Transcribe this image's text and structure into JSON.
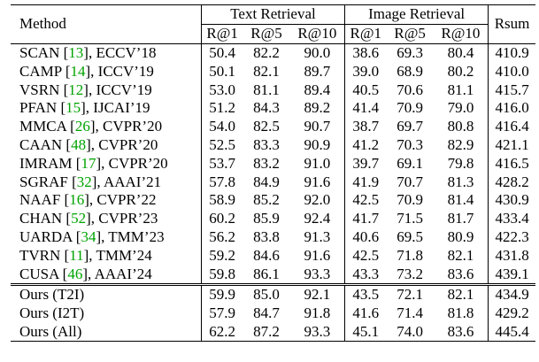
{
  "table": {
    "header": {
      "method": "Method",
      "text_retrieval": "Text Retrieval",
      "image_retrieval": "Image Retrieval",
      "rsum": "Rsum",
      "metrics": [
        "R@1",
        "R@5",
        "R@10",
        "R@1",
        "R@5",
        "R@10"
      ]
    },
    "rows": [
      {
        "name": "SCAN",
        "ref": "13",
        "venue": "ECCV’18",
        "t1": "50.4",
        "t5": "82.2",
        "t10": "90.0",
        "i1": "38.6",
        "i5": "69.3",
        "i10": "80.4",
        "rsum": "410.9"
      },
      {
        "name": "CAMP",
        "ref": "14",
        "venue": "ICCV’19",
        "t1": "50.1",
        "t5": "82.1",
        "t10": "89.7",
        "i1": "39.0",
        "i5": "68.9",
        "i10": "80.2",
        "rsum": "410.0"
      },
      {
        "name": "VSRN",
        "ref": "12",
        "venue": "ICCV’19",
        "t1": "53.0",
        "t5": "81.1",
        "t10": "89.4",
        "i1": "40.5",
        "i5": "70.6",
        "i10": "81.1",
        "rsum": "415.7"
      },
      {
        "name": "PFAN",
        "ref": "15",
        "venue": "IJCAI’19",
        "t1": "51.2",
        "t5": "84.3",
        "t10": "89.2",
        "i1": "41.4",
        "i5": "70.9",
        "i10": "79.0",
        "rsum": "416.0"
      },
      {
        "name": "MMCA",
        "ref": "26",
        "venue": "CVPR’20",
        "t1": "54.0",
        "t5": "82.5",
        "t10": "90.7",
        "i1": "38.7",
        "i5": "69.7",
        "i10": "80.8",
        "rsum": "416.4"
      },
      {
        "name": "CAAN",
        "ref": "48",
        "venue": "CVPR’20",
        "t1": "52.5",
        "t5": "83.3",
        "t10": "90.9",
        "i1": "41.2",
        "i5": "70.3",
        "i10": "82.9",
        "rsum": "421.1"
      },
      {
        "name": "IMRAM",
        "ref": "17",
        "venue": "CVPR’20",
        "t1": "53.7",
        "t5": "83.2",
        "t10": "91.0",
        "i1": "39.7",
        "i5": "69.1",
        "i10": "79.8",
        "rsum": "416.5"
      },
      {
        "name": "SGRAF",
        "ref": "32",
        "venue": "AAAI’21",
        "t1": "57.8",
        "t5": "84.9",
        "t10": "91.6",
        "i1": "41.9",
        "i5": "70.7",
        "i10": "81.3",
        "rsum": "428.2"
      },
      {
        "name": "NAAF",
        "ref": "16",
        "venue": "CVPR’22",
        "t1": "58.9",
        "t5": "85.2",
        "t10": "92.0",
        "i1": "42.5",
        "i5": "70.9",
        "i10": "81.4",
        "rsum": "430.9"
      },
      {
        "name": "CHAN",
        "ref": "52",
        "venue": "CVPR’23",
        "t1": "60.2",
        "t5": "85.9",
        "t10": "92.4",
        "i1": "41.7",
        "i5": "71.5",
        "i10": "81.7",
        "rsum": "433.4"
      },
      {
        "name": "UARDA",
        "ref": "34",
        "venue": "TMM’23",
        "t1": "56.2",
        "t5": "83.8",
        "t10": "91.3",
        "i1": "40.6",
        "i5": "69.5",
        "i10": "80.9",
        "rsum": "422.3"
      },
      {
        "name": "TVRN",
        "ref": "11",
        "venue": "TMM’24",
        "t1": "59.2",
        "t5": "84.6",
        "t10": "91.6",
        "i1": "42.5",
        "i5": "71.8",
        "i10": "82.1",
        "rsum": "431.8"
      },
      {
        "name": "CUSA",
        "ref": "46",
        "venue": "AAAI’24",
        "t1": "59.8",
        "t5": "86.1",
        "t10": "93.3",
        "i1": "43.3",
        "i5": "73.2",
        "i10": "83.6",
        "rsum": "439.1"
      }
    ],
    "ours": [
      {
        "name": "Ours (T2I)",
        "t1": "59.9",
        "t5": "85.0",
        "t10": "92.1",
        "i1": "43.5",
        "i5": "72.1",
        "i10": "82.1",
        "rsum": "434.9"
      },
      {
        "name": "Ours (I2T)",
        "t1": "57.9",
        "t5": "84.7",
        "t10": "91.8",
        "i1": "41.6",
        "i5": "71.4",
        "i10": "81.8",
        "rsum": "429.2"
      },
      {
        "name": "Ours (All)",
        "t1": "62.2",
        "t5": "87.2",
        "t10": "93.3",
        "i1": "45.1",
        "i5": "74.0",
        "i10": "83.6",
        "rsum": "445.4"
      }
    ],
    "colors": {
      "ref_link": "#00a300",
      "text": "#000000"
    }
  }
}
